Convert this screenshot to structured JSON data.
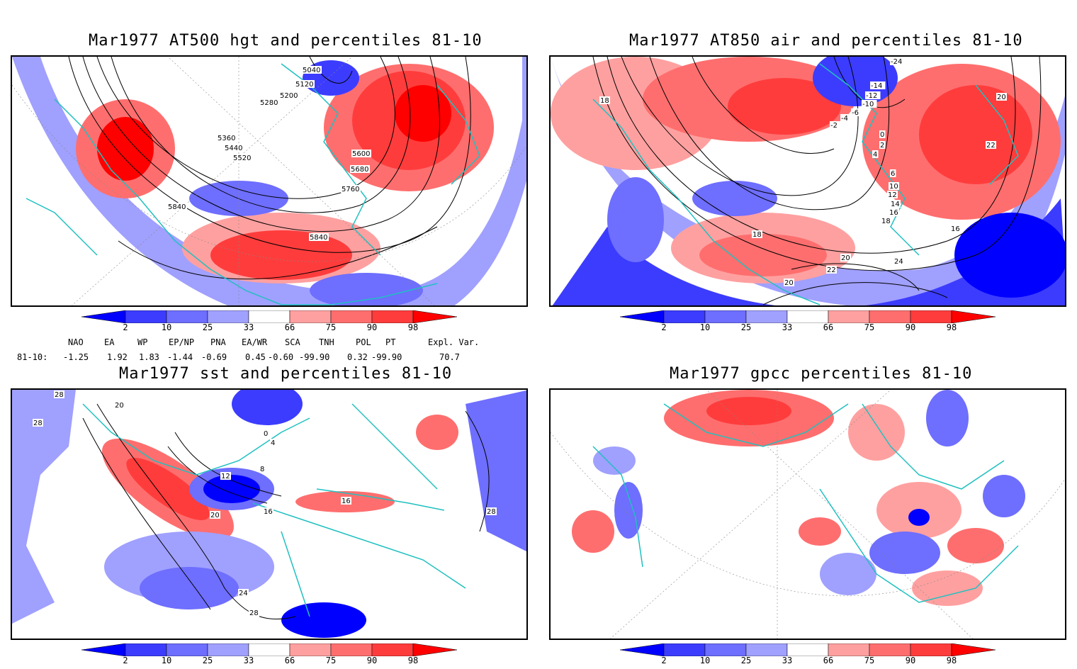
{
  "panels": [
    {
      "title": "Mar1977 AT500 hgt and percentiles 81-10",
      "contour_labels": [
        "5040",
        "5120",
        "5200",
        "5280",
        "5360",
        "5440",
        "5520",
        "5600",
        "5680",
        "5760",
        "5840",
        "5840"
      ]
    },
    {
      "title": "Mar1977 AT850 air and percentiles 81-10",
      "contour_labels": [
        "-24",
        "-14",
        "-12",
        "-10",
        "-6",
        "-4",
        "-2",
        "0",
        "2",
        "4",
        "6",
        "10",
        "12",
        "14",
        "16",
        "18",
        "18",
        "20",
        "20",
        "22",
        "24",
        "16",
        "18",
        "22",
        "20"
      ]
    },
    {
      "title": "Mar1977 sst and percentiles 81-10",
      "contour_labels": [
        "28",
        "28",
        "20",
        "0",
        "4",
        "8",
        "12",
        "16",
        "20",
        "24",
        "28",
        "16",
        "28"
      ]
    },
    {
      "title": "Mar1977 gpcc percentiles 81-10",
      "contour_labels": []
    }
  ],
  "colorbar": {
    "ticks": [
      "2",
      "10",
      "25",
      "33",
      "66",
      "75",
      "90",
      "98"
    ],
    "colors": {
      "below2": "#0000ff",
      "2_10": "#3c3cff",
      "10_25": "#6e6eff",
      "25_33": "#a0a0ff",
      "mid": "#ffffff",
      "66_75": "#ffa0a0",
      "75_90": "#ff6e6e",
      "90_98": "#ff3c3c",
      "above98": "#ff0000"
    }
  },
  "teleconnections": {
    "row_label": "81-10:",
    "indices": [
      {
        "name": "NAO",
        "value": "-1.25"
      },
      {
        "name": "EA",
        "value": "1.92"
      },
      {
        "name": "WP",
        "value": "1.83"
      },
      {
        "name": "EP/NP",
        "value": "-1.44"
      },
      {
        "name": "PNA",
        "value": "-0.69"
      },
      {
        "name": "EA/WR",
        "value": "0.45"
      },
      {
        "name": "SCA",
        "value": "-0.60"
      },
      {
        "name": "TNH",
        "value": "-99.90"
      },
      {
        "name": "POL",
        "value": "0.32"
      },
      {
        "name": "PT",
        "value": "-99.90"
      },
      {
        "name": "Expl. Var.",
        "value": "70.7"
      }
    ]
  }
}
